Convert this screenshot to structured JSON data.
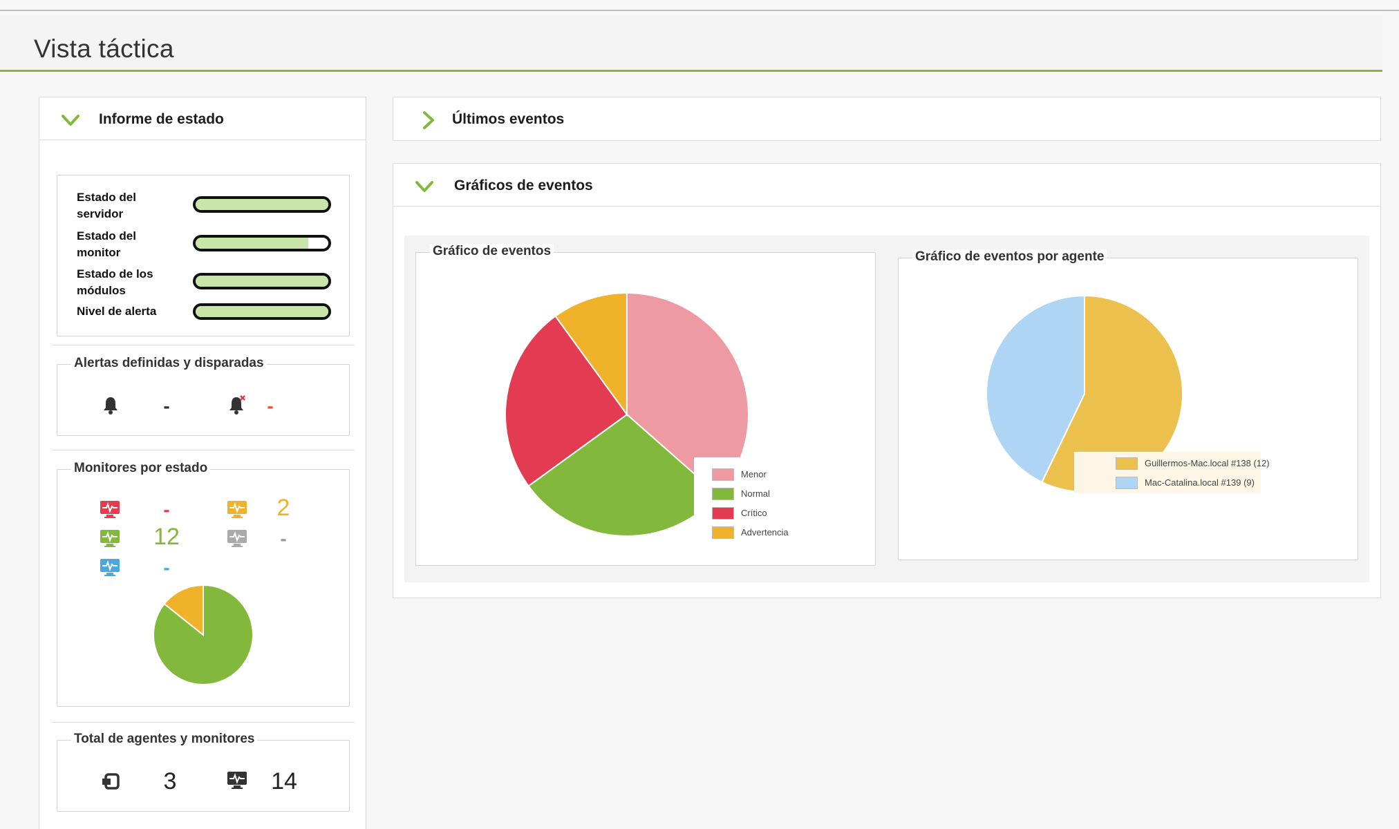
{
  "header": {
    "title": "Vista táctica"
  },
  "status_panel": {
    "title": "Informe de estado",
    "rows": [
      {
        "label": "Estado del servidor",
        "fill": 1.0
      },
      {
        "label": "Estado del monitor",
        "fill": 0.85
      },
      {
        "label": "Estado de los módulos",
        "fill": 1.0
      },
      {
        "label": "Nivel de alerta",
        "fill": 1.0
      }
    ],
    "alerts": {
      "title": "Alertas definidas y disparadas",
      "defined_value": "-",
      "fired_value": "-",
      "colors": {
        "defined": "#333333",
        "fired": "#e8552a"
      }
    },
    "monitors": {
      "title": "Monitores por estado",
      "critical": "-",
      "warning": "2",
      "normal": "12",
      "unknown": "-",
      "not_init": "-",
      "colors": {
        "critical": "#e63c52",
        "warning": "#f0b22a",
        "normal": "#82b93c",
        "unknown": "#aaaaaa",
        "not_init": "#4aa8e0"
      },
      "pie": [
        {
          "state": "normal",
          "value": 12
        },
        {
          "state": "warning",
          "value": 2
        }
      ]
    },
    "totals": {
      "title": "Total de agentes y monitores",
      "agents": "3",
      "monitors": "14"
    }
  },
  "events_panel": {
    "title": "Últimos eventos"
  },
  "graphs_panel": {
    "title": "Gráficos de eventos",
    "chart1_title": "Gráfico de eventos",
    "chart2_title": "Gráfico de eventos por agente"
  },
  "chart_data": [
    {
      "type": "pie",
      "title": "Gráfico de eventos",
      "categories": [
        "Menor",
        "Normal",
        "Crítico",
        "Advertencia"
      ],
      "values": [
        36.5,
        28.5,
        25,
        10
      ],
      "colors": [
        "#ee9aa2",
        "#82b93c",
        "#e23b52",
        "#f0b22a"
      ],
      "legend": "bottom-right"
    },
    {
      "type": "pie",
      "title": "Gráfico de eventos por agente",
      "categories": [
        "Guillermos-Mac.local #138 (12)",
        "Mac-Catalina.local #139 (9)"
      ],
      "values": [
        12,
        9
      ],
      "colors": [
        "#ecc04c",
        "#aed6f4"
      ],
      "legend": "bottom-right"
    }
  ]
}
